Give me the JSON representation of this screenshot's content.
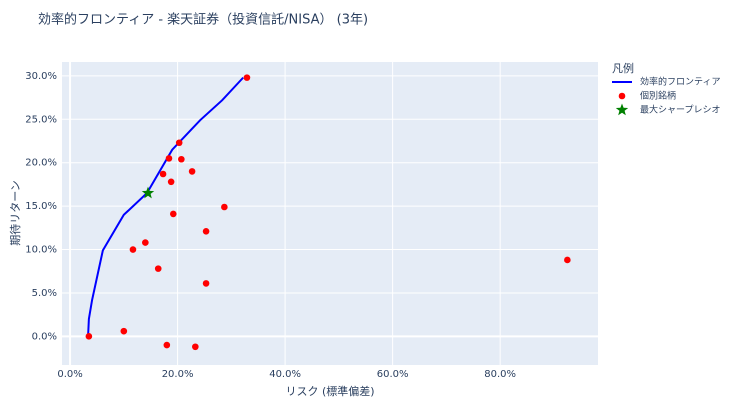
{
  "chart_data": {
    "type": "scatter",
    "title": "効率的フロンティア - 楽天証券（投資信託/NISA） (3年)",
    "x_label": "リスク (標準偏差)",
    "y_label": "期待リターン",
    "legend_title": "凡例",
    "legend_position": "outside-right",
    "grid": true,
    "xlim": [
      -1.5,
      98.2
    ],
    "ylim": [
      -3.3,
      31.6
    ],
    "xticks": [
      {
        "value": 0,
        "label": "0.0%"
      },
      {
        "value": 20,
        "label": "20.0%"
      },
      {
        "value": 40,
        "label": "40.0%"
      },
      {
        "value": 60,
        "label": "60.0%"
      },
      {
        "value": 80,
        "label": "80.0%"
      }
    ],
    "yticks": [
      {
        "value": 0,
        "label": "0.0%"
      },
      {
        "value": 5,
        "label": "5.0%"
      },
      {
        "value": 10,
        "label": "10.0%"
      },
      {
        "value": 15,
        "label": "15.0%"
      },
      {
        "value": 20,
        "label": "20.0%"
      },
      {
        "value": 25,
        "label": "25.0%"
      },
      {
        "value": 30,
        "label": "30.0%"
      }
    ],
    "series": [
      {
        "name": "効率的フロンティア",
        "mode": "line",
        "color": "#0000ff",
        "x": [
          3.35,
          3.5,
          4.1,
          6.1,
          10,
          14.3,
          19,
          24.2,
          28.3,
          32.2
        ],
        "values": [
          0,
          2,
          4.2,
          9.9,
          14,
          16.5,
          21.5,
          24.9,
          27.2,
          29.8
        ]
      },
      {
        "name": "個別銘柄",
        "mode": "markers",
        "marker": "circle",
        "color": "#ff0000",
        "x": [
          3.5,
          10.0,
          18.0,
          23.3,
          25.3,
          16.4,
          11.7,
          14.0,
          25.3,
          19.2,
          28.7,
          17.3,
          18.8,
          22.7,
          18.4,
          20.7,
          20.3,
          32.9,
          92.5
        ],
        "values": [
          0.0,
          0.6,
          -1.0,
          -1.2,
          6.1,
          7.8,
          10.0,
          10.8,
          12.1,
          14.1,
          14.9,
          18.7,
          17.8,
          19.0,
          20.5,
          20.4,
          22.3,
          29.8,
          8.8
        ]
      },
      {
        "name": "最大シャープレシオ",
        "mode": "markers",
        "marker": "star",
        "color": "#008000",
        "x": [
          14.5
        ],
        "values": [
          16.5
        ]
      }
    ]
  }
}
